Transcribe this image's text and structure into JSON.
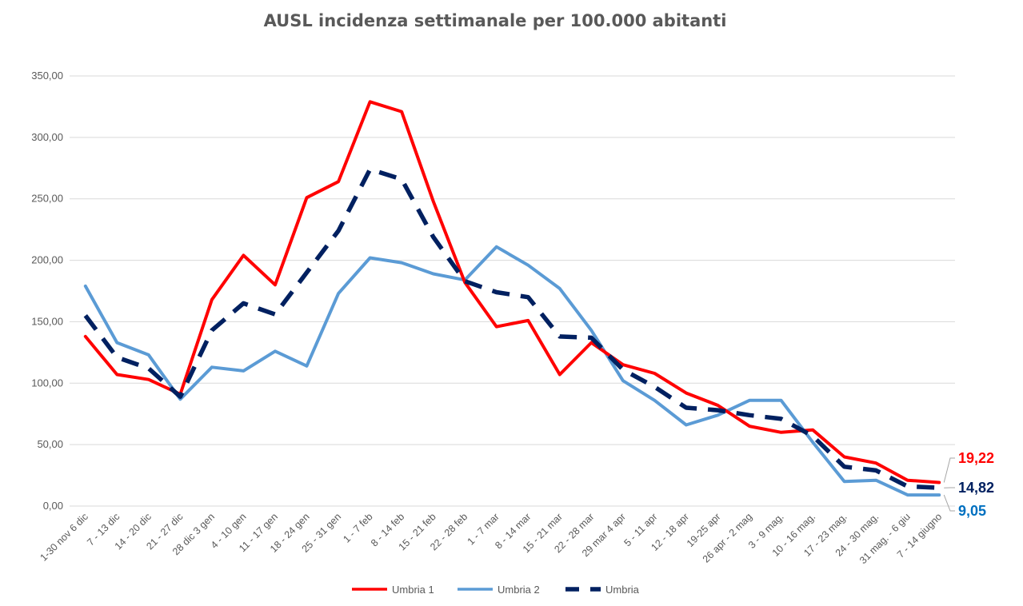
{
  "chart_data": {
    "type": "line",
    "title": "AUSL incidenza settimanale per 100.000 abitanti",
    "xlabel": "",
    "ylabel": "",
    "ylim": [
      0,
      350
    ],
    "ytick_step": 50,
    "grid": true,
    "legend_position": "bottom",
    "categories": [
      "1-30 nov 6 dic",
      "7 - 13 dic",
      "14 - 20 dic",
      "21 - 27 dic",
      "28 dic 3 gen",
      "4 - 10 gen",
      "11 - 17 gen",
      "18 - 24 gen",
      "25 - 31 gen",
      "1 - 7 feb",
      "8 - 14 feb",
      "15 - 21 feb",
      "22 - 28 feb",
      "1 - 7 mar",
      "8 - 14 mar",
      "15 - 21 mar",
      "22 - 28 mar",
      "29 mar 4 apr",
      "5 - 11 apr",
      "12 - 18 apr",
      "19-25 apr",
      "26 apr - 2 mag",
      "3 - 9 mag.",
      "10 - 16 mag.",
      "17 - 23 mag.",
      "24 - 30 mag.",
      "31 mag. - 6 giu",
      "7 - 14 giugno"
    ],
    "series": [
      {
        "name": "Umbria 1",
        "color": "#ff0000",
        "style": "solid",
        "values": [
          138,
          107,
          103,
          91,
          168,
          204,
          180,
          251,
          264,
          329,
          321,
          248,
          182,
          146,
          151,
          107,
          133,
          115,
          108,
          92,
          82,
          65,
          60,
          62,
          40,
          35,
          21,
          19.22
        ]
      },
      {
        "name": "Umbria 2",
        "color": "#5b9bd5",
        "style": "solid",
        "values": [
          179,
          133,
          123,
          87,
          113,
          110,
          126,
          114,
          173,
          202,
          198,
          189,
          184,
          211,
          196,
          177,
          143,
          102,
          86,
          66,
          74,
          86,
          86,
          52,
          20,
          21,
          9.05,
          9.05
        ]
      },
      {
        "name": "Umbria",
        "color": "#002060",
        "style": "dashed",
        "values": [
          155,
          121,
          112,
          89,
          143,
          165,
          156,
          190,
          224,
          274,
          266,
          219,
          183,
          174,
          170,
          138,
          137,
          111,
          97,
          80,
          78,
          74,
          71,
          57,
          32,
          29,
          16,
          14.82
        ]
      }
    ],
    "end_labels": [
      "19,22",
      "9,05",
      "14,82"
    ],
    "y_tick_labels": [
      "0,00",
      "50,00",
      "100,00",
      "150,00",
      "200,00",
      "250,00",
      "300,00",
      "350,00"
    ]
  }
}
